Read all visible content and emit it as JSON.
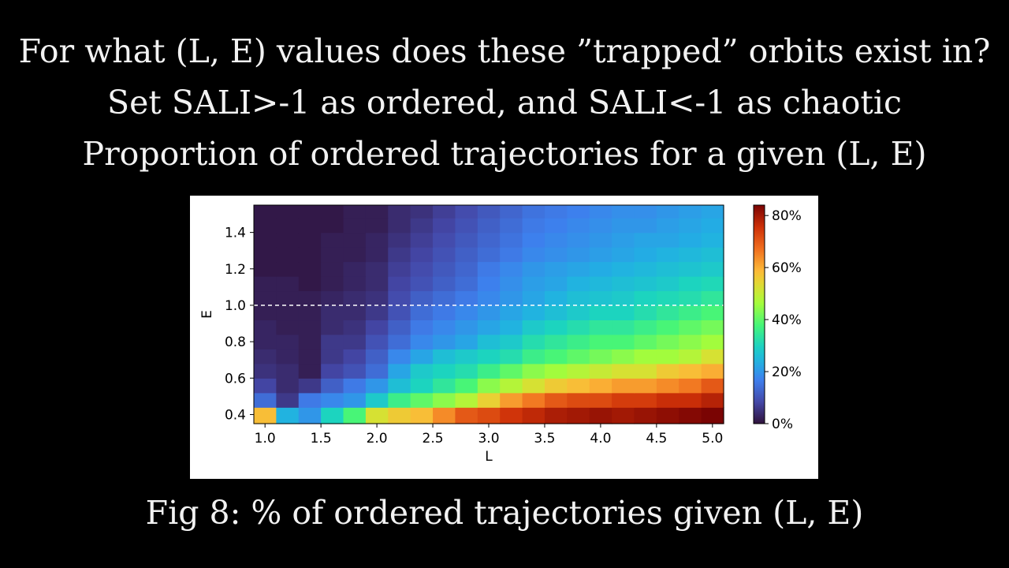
{
  "slide": {
    "line1": "For what (L, E) values does these ”trapped” orbits exist in?",
    "line2": "Set SALI>-1 as ordered, and SALI<-1 as chaotic",
    "line3": "Proportion of ordered trajectories for a given (L, E)",
    "caption": "Fig 8: % of ordered trajectories given (L, E)"
  },
  "chart_data": {
    "type": "heatmap",
    "title": "",
    "xlabel": "L",
    "ylabel": "E",
    "xlim": [
      0.9,
      5.1
    ],
    "ylim": [
      0.35,
      1.55
    ],
    "x_ticks": [
      1.0,
      1.5,
      2.0,
      2.5,
      3.0,
      3.5,
      4.0,
      4.5,
      5.0
    ],
    "x_tick_labels": [
      "1.0",
      "1.5",
      "2.0",
      "2.5",
      "3.0",
      "3.5",
      "4.0",
      "4.5",
      "5.0"
    ],
    "y_ticks": [
      0.4,
      0.6,
      0.8,
      1.0,
      1.2,
      1.4
    ],
    "y_tick_labels": [
      "0.4",
      "0.6",
      "0.8",
      "1.0",
      "1.2",
      "1.4"
    ],
    "colorbar": {
      "min": 0,
      "max": 84,
      "unit": "%",
      "ticks": [
        0,
        20,
        40,
        60,
        80
      ],
      "tick_labels": [
        "0%",
        "20%",
        "40%",
        "60%",
        "80%"
      ],
      "colormap": "turbo"
    },
    "reference_line": {
      "axis": "y",
      "value": 1.0,
      "style": "dashed",
      "color": "#ffffff"
    },
    "x_centers": [
      1.0,
      1.2,
      1.4,
      1.6,
      1.8,
      2.0,
      2.2,
      2.4,
      2.6,
      2.8,
      3.0,
      3.2,
      3.4,
      3.6,
      3.8,
      4.0,
      4.2,
      4.4,
      4.6,
      4.8,
      5.0
    ],
    "y_centers": [
      0.4,
      0.48,
      0.56,
      0.64,
      0.72,
      0.8,
      0.88,
      0.96,
      1.04,
      1.12,
      1.2,
      1.28,
      1.36,
      1.44,
      1.52
    ],
    "values": [
      [
        58,
        24,
        20,
        30,
        38,
        52,
        56,
        58,
        64,
        70,
        72,
        75,
        77,
        79,
        80,
        81,
        80,
        81,
        82,
        83,
        84
      ],
      [
        14,
        6,
        16,
        18,
        20,
        28,
        36,
        40,
        44,
        48,
        55,
        62,
        66,
        70,
        72,
        72,
        74,
        74,
        76,
        76,
        78
      ],
      [
        8,
        4,
        6,
        12,
        16,
        20,
        26,
        30,
        34,
        38,
        44,
        48,
        52,
        56,
        58,
        60,
        62,
        62,
        64,
        66,
        70
      ],
      [
        5,
        4,
        2,
        8,
        10,
        14,
        22,
        28,
        30,
        32,
        36,
        40,
        44,
        46,
        48,
        50,
        52,
        52,
        56,
        58,
        60
      ],
      [
        4,
        3,
        2,
        6,
        8,
        12,
        18,
        22,
        26,
        28,
        30,
        32,
        36,
        38,
        40,
        42,
        44,
        46,
        46,
        48,
        52
      ],
      [
        3,
        3,
        2,
        6,
        6,
        10,
        14,
        18,
        20,
        22,
        26,
        28,
        32,
        34,
        36,
        38,
        38,
        40,
        42,
        44,
        46
      ],
      [
        3,
        2,
        2,
        4,
        5,
        8,
        12,
        16,
        18,
        20,
        22,
        24,
        28,
        30,
        32,
        34,
        34,
        36,
        38,
        40,
        42
      ],
      [
        2,
        2,
        2,
        4,
        4,
        6,
        10,
        14,
        16,
        18,
        20,
        22,
        24,
        26,
        28,
        30,
        30,
        32,
        34,
        36,
        38
      ],
      [
        2,
        2,
        2,
        3,
        4,
        5,
        9,
        12,
        14,
        16,
        18,
        20,
        22,
        24,
        26,
        27,
        28,
        30,
        31,
        32,
        34
      ],
      [
        2,
        2,
        1,
        2,
        3,
        4,
        8,
        10,
        12,
        14,
        17,
        19,
        21,
        22,
        24,
        25,
        26,
        27,
        28,
        30,
        31
      ],
      [
        1,
        1,
        1,
        2,
        3,
        4,
        7,
        9,
        11,
        13,
        16,
        18,
        20,
        21,
        22,
        23,
        24,
        25,
        26,
        27,
        28
      ],
      [
        1,
        1,
        1,
        2,
        2,
        3,
        6,
        8,
        10,
        12,
        14,
        16,
        18,
        19,
        20,
        21,
        22,
        23,
        24,
        25,
        26
      ],
      [
        1,
        1,
        1,
        2,
        2,
        3,
        5,
        7,
        9,
        11,
        13,
        15,
        17,
        18,
        19,
        20,
        21,
        22,
        22,
        23,
        24
      ],
      [
        1,
        1,
        1,
        1,
        2,
        2,
        4,
        6,
        8,
        10,
        12,
        14,
        16,
        17,
        18,
        19,
        20,
        20,
        21,
        22,
        23
      ],
      [
        1,
        1,
        1,
        1,
        2,
        2,
        4,
        5,
        7,
        9,
        11,
        13,
        15,
        16,
        17,
        18,
        19,
        19,
        20,
        21,
        22
      ]
    ]
  }
}
